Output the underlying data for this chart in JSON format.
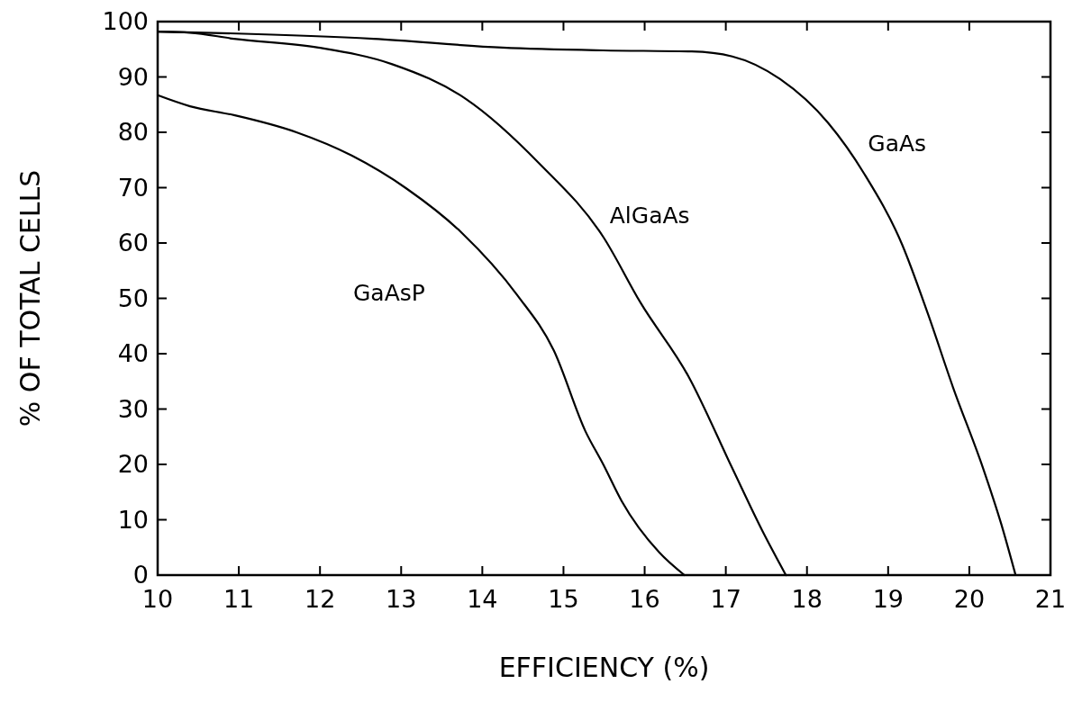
{
  "chart_data": {
    "type": "line",
    "xlabel": "EFFICIENCY (%)",
    "ylabel": "% OF TOTAL CELLS",
    "xlim": [
      10,
      21
    ],
    "ylim": [
      0,
      100
    ],
    "xticks": [
      10,
      11,
      12,
      13,
      14,
      15,
      16,
      17,
      18,
      19,
      20,
      21
    ],
    "yticks": [
      0,
      10,
      20,
      30,
      40,
      50,
      60,
      70,
      80,
      90,
      100
    ],
    "grid": false,
    "marker": "none",
    "line_style": "solid",
    "series": [
      {
        "name": "GaAs",
        "color": "#000000",
        "x": [
          10,
          12.66,
          14.25,
          15.49,
          16.58,
          17.08,
          17.67,
          18.26,
          18.71,
          19.17,
          19.49,
          19.8,
          20.17,
          20.39,
          20.57
        ],
        "values": [
          98.2,
          96.9,
          95.3,
          94.8,
          94.6,
          93.7,
          89.6,
          81.7,
          72.4,
          59.8,
          47.2,
          33.9,
          19.3,
          9.4,
          0
        ]
      },
      {
        "name": "AlGaAs",
        "color": "#000000",
        "x": [
          10,
          10.4,
          10.94,
          11.98,
          12.89,
          13.8,
          14.7,
          15.49,
          15.95,
          16.54,
          17.08,
          17.45,
          17.74
        ],
        "values": [
          98.2,
          98,
          96.9,
          95.3,
          92.3,
          86,
          74.4,
          61.1,
          49.2,
          35.9,
          19.3,
          8,
          0
        ]
      },
      {
        "name": "GaAsP",
        "color": "#000000",
        "x": [
          10,
          10.4,
          10.94,
          11.71,
          12.39,
          13.07,
          13.75,
          14.43,
          14.88,
          15.27,
          15.49,
          15.72,
          16.18,
          16.49
        ],
        "values": [
          86.7,
          84.7,
          83.1,
          80,
          75.8,
          69.8,
          61.8,
          50.6,
          40.6,
          26,
          20,
          13.3,
          4.1,
          0
        ]
      }
    ]
  }
}
